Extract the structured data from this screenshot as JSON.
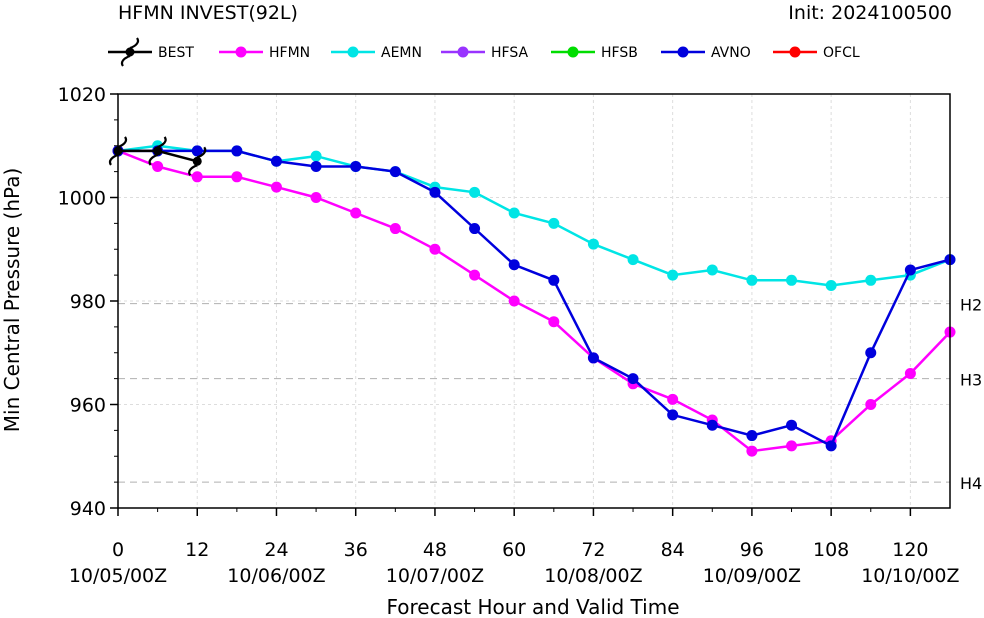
{
  "title_left": "HFMN INVEST(92L)",
  "title_right": "Init: 2024100500",
  "chart_data": {
    "type": "line",
    "xlabel": "Forecast Hour and Valid Time",
    "ylabel": "Min Central Pressure (hPa)",
    "xlim": [
      0,
      126
    ],
    "ylim": [
      940,
      1020
    ],
    "x_ticks": [
      0,
      12,
      24,
      36,
      48,
      60,
      72,
      84,
      96,
      108,
      120
    ],
    "x_date_labels": {
      "0": "10/05/00Z",
      "24": "10/06/00Z",
      "48": "10/07/00Z",
      "72": "10/08/00Z",
      "96": "10/09/00Z",
      "120": "10/10/00Z"
    },
    "y_ticks": [
      940,
      960,
      980,
      1000,
      1020
    ],
    "grid": true,
    "reference_lines": [
      {
        "label": "H2",
        "value": 979.5
      },
      {
        "label": "H3",
        "value": 965
      },
      {
        "label": "H4",
        "value": 945
      }
    ],
    "legend_position": "top",
    "series": [
      {
        "name": "BEST",
        "color": "#000000",
        "marker": "hurricane-symbol",
        "x": [
          0,
          6,
          12
        ],
        "y": [
          1009,
          1009,
          1007
        ]
      },
      {
        "name": "HFMN",
        "color": "#ff00ff",
        "x": [
          0,
          6,
          12,
          18,
          24,
          30,
          36,
          42,
          48,
          54,
          60,
          66,
          72,
          78,
          84,
          90,
          96,
          102,
          108,
          114,
          120,
          126
        ],
        "y": [
          1009,
          1006,
          1004,
          1004,
          1002,
          1000,
          997,
          994,
          990,
          985,
          980,
          976,
          969,
          964,
          961,
          957,
          951,
          952,
          953,
          960,
          966,
          974
        ]
      },
      {
        "name": "AEMN",
        "color": "#00e5e5",
        "x": [
          0,
          6,
          12,
          18,
          24,
          30,
          36,
          42,
          48,
          54,
          60,
          66,
          72,
          78,
          84,
          90,
          96,
          102,
          108,
          114,
          120,
          126
        ],
        "y": [
          1009,
          1010,
          1009,
          1009,
          1007,
          1008,
          1006,
          1005,
          1002,
          1001,
          997,
          995,
          991,
          988,
          985,
          986,
          984,
          984,
          983,
          984,
          985,
          988
        ]
      },
      {
        "name": "HFSA",
        "color": "#9933ff",
        "x": [],
        "y": []
      },
      {
        "name": "HFSB",
        "color": "#00dd00",
        "x": [],
        "y": []
      },
      {
        "name": "AVNO",
        "color": "#0000dd",
        "x": [
          0,
          6,
          12,
          18,
          24,
          30,
          36,
          42,
          48,
          54,
          60,
          66,
          72,
          78,
          84,
          90,
          96,
          102,
          108,
          114,
          120,
          126
        ],
        "y": [
          1009,
          1009,
          1009,
          1009,
          1007,
          1006,
          1006,
          1005,
          1001,
          994,
          987,
          984,
          969,
          965,
          958,
          956,
          954,
          956,
          952,
          970,
          986,
          988
        ]
      },
      {
        "name": "OFCL",
        "color": "#ff0000",
        "x": [],
        "y": []
      }
    ]
  }
}
